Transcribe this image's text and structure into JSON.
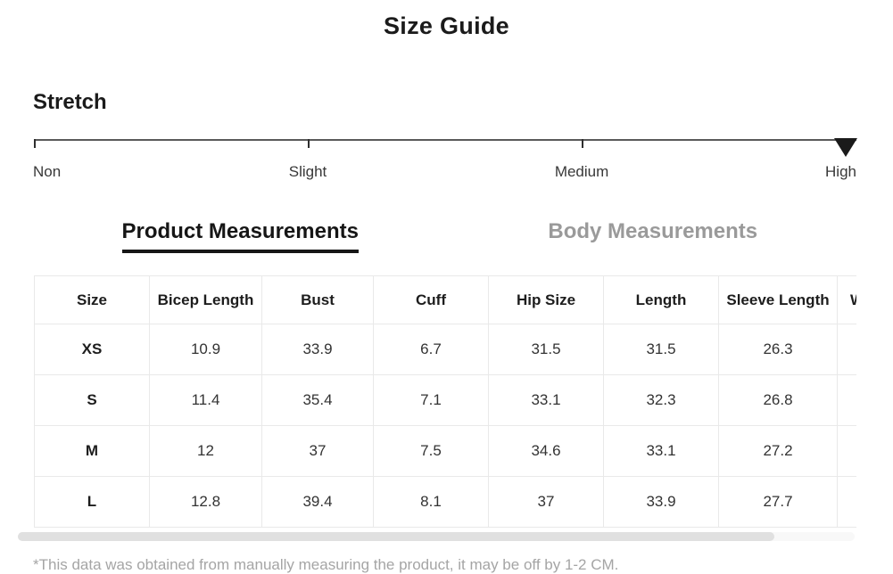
{
  "page": {
    "title": "Size Guide"
  },
  "stretch": {
    "heading": "Stretch",
    "levels": [
      {
        "label": "Non"
      },
      {
        "label": "Slight"
      },
      {
        "label": "Medium"
      },
      {
        "label": "High"
      }
    ],
    "selected_level": "High"
  },
  "tabs": [
    {
      "label": "Product Measurements",
      "active": true
    },
    {
      "label": "Body Measurements",
      "active": false
    }
  ],
  "measurements_table": {
    "columns": [
      "Size",
      "Bicep Length",
      "Bust",
      "Cuff",
      "Hip Size",
      "Length",
      "Sleeve Length",
      "W"
    ],
    "rows": [
      [
        "XS",
        "10.9",
        "33.9",
        "6.7",
        "31.5",
        "31.5",
        "26.3",
        ""
      ],
      [
        "S",
        "11.4",
        "35.4",
        "7.1",
        "33.1",
        "32.3",
        "26.8",
        ""
      ],
      [
        "M",
        "12",
        "37",
        "7.5",
        "34.6",
        "33.1",
        "27.2",
        ""
      ],
      [
        "L",
        "12.8",
        "39.4",
        "8.1",
        "37",
        "33.9",
        "27.7",
        ""
      ]
    ]
  },
  "footnote": "*This data was obtained from manually measuring the product, it may be off by 1-2 CM.",
  "colors": {
    "text": "#1b1b1b",
    "tab_inactive": "#9a9a9a",
    "table_border": "#e9e9e9",
    "footnote": "#a5a5a5",
    "scrollbar_thumb": "#e0e0e0"
  }
}
